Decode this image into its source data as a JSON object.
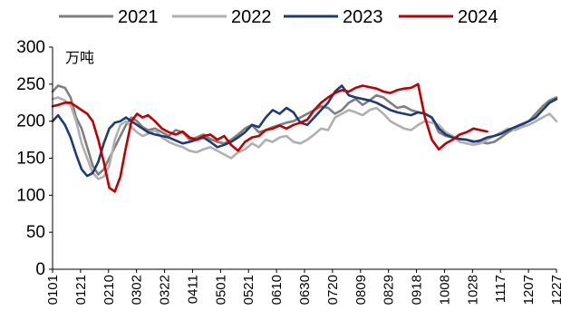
{
  "chart_data": {
    "type": "line",
    "unit_label": "万吨",
    "ylim": [
      0,
      300
    ],
    "y_ticks": [
      0,
      50,
      100,
      150,
      200,
      250,
      300
    ],
    "x_range": [
      1,
      365
    ],
    "x_tick_labels": [
      "0101",
      "0121",
      "0210",
      "0302",
      "0322",
      "0411",
      "0501",
      "0521",
      "0610",
      "0630",
      "0720",
      "0809",
      "0829",
      "0918",
      "1008",
      "1028",
      "1117",
      "1207",
      "1227"
    ],
    "grid": false,
    "legend_position": "top",
    "series": [
      {
        "name": "2021",
        "color": "#7f7f7f",
        "x": [
          1,
          5,
          10,
          14,
          18,
          22,
          26,
          30,
          34,
          38,
          42,
          46,
          50,
          54,
          58,
          62,
          66,
          70,
          75,
          80,
          85,
          90,
          95,
          100,
          105,
          110,
          115,
          120,
          125,
          130,
          135,
          140,
          145,
          150,
          155,
          160,
          165,
          170,
          175,
          180,
          185,
          190,
          195,
          200,
          205,
          210,
          215,
          220,
          225,
          230,
          235,
          240,
          245,
          250,
          255,
          260,
          265,
          270,
          275,
          280,
          285,
          290,
          295,
          300,
          305,
          310,
          315,
          320,
          325,
          330,
          335,
          340,
          345,
          350,
          355,
          360,
          365
        ],
        "values": [
          240,
          248,
          245,
          232,
          205,
          190,
          165,
          140,
          128,
          135,
          150,
          165,
          180,
          195,
          205,
          200,
          192,
          188,
          190,
          185,
          180,
          188,
          185,
          175,
          178,
          182,
          176,
          172,
          170,
          175,
          182,
          190,
          195,
          185,
          188,
          192,
          195,
          198,
          200,
          205,
          210,
          215,
          220,
          218,
          210,
          215,
          225,
          230,
          222,
          228,
          235,
          232,
          225,
          218,
          220,
          215,
          212,
          210,
          205,
          185,
          180,
          178,
          176,
          175,
          173,
          172,
          170,
          172,
          178,
          185,
          190,
          195,
          200,
          210,
          220,
          228,
          232
        ]
      },
      {
        "name": "2022",
        "color": "#b0b0b0",
        "x": [
          1,
          5,
          10,
          14,
          18,
          22,
          26,
          30,
          34,
          38,
          42,
          46,
          50,
          54,
          58,
          62,
          66,
          70,
          75,
          80,
          85,
          90,
          95,
          100,
          105,
          110,
          115,
          120,
          125,
          130,
          135,
          140,
          145,
          150,
          155,
          160,
          165,
          170,
          175,
          180,
          185,
          190,
          195,
          200,
          205,
          210,
          215,
          220,
          225,
          230,
          235,
          240,
          245,
          250,
          255,
          260,
          265,
          270,
          275,
          280,
          285,
          290,
          295,
          300,
          305,
          310,
          315,
          320,
          325,
          330,
          335,
          340,
          345,
          350,
          355,
          360,
          365
        ],
        "values": [
          230,
          232,
          228,
          222,
          200,
          170,
          150,
          130,
          122,
          125,
          140,
          175,
          195,
          200,
          192,
          185,
          180,
          183,
          188,
          178,
          172,
          168,
          165,
          160,
          158,
          162,
          165,
          160,
          155,
          150,
          158,
          162,
          170,
          165,
          175,
          172,
          178,
          180,
          172,
          170,
          175,
          182,
          190,
          188,
          205,
          210,
          215,
          212,
          208,
          215,
          218,
          210,
          200,
          195,
          190,
          188,
          195,
          200,
          198,
          195,
          185,
          180,
          172,
          170,
          168,
          170,
          175,
          180,
          185,
          190,
          188,
          192,
          195,
          200,
          205,
          210,
          200
        ]
      },
      {
        "name": "2023",
        "color": "#1f3b73",
        "x": [
          1,
          5,
          10,
          14,
          18,
          22,
          26,
          30,
          34,
          38,
          42,
          46,
          50,
          54,
          58,
          62,
          66,
          70,
          75,
          80,
          85,
          90,
          95,
          100,
          105,
          110,
          115,
          120,
          125,
          130,
          135,
          140,
          145,
          150,
          155,
          160,
          165,
          170,
          175,
          180,
          185,
          190,
          195,
          200,
          205,
          210,
          215,
          220,
          225,
          230,
          235,
          240,
          245,
          250,
          255,
          260,
          265,
          270,
          275,
          280,
          285,
          290,
          295,
          300,
          305,
          310,
          315,
          320,
          325,
          330,
          335,
          340,
          345,
          350,
          355,
          360,
          365
        ],
        "values": [
          200,
          208,
          195,
          178,
          155,
          135,
          126,
          130,
          145,
          170,
          190,
          198,
          200,
          205,
          200,
          195,
          190,
          185,
          182,
          180,
          178,
          174,
          170,
          172,
          175,
          178,
          172,
          165,
          168,
          172,
          178,
          185,
          195,
          192,
          205,
          215,
          210,
          218,
          212,
          198,
          195,
          205,
          215,
          225,
          240,
          248,
          235,
          232,
          230,
          228,
          225,
          220,
          215,
          212,
          210,
          208,
          212,
          210,
          205,
          190,
          182,
          178,
          176,
          175,
          172,
          174,
          178,
          180,
          183,
          188,
          192,
          196,
          200,
          205,
          215,
          225,
          230
        ]
      },
      {
        "name": "2024",
        "color": "#c00000",
        "x": [
          1,
          5,
          10,
          14,
          18,
          22,
          26,
          30,
          34,
          38,
          42,
          46,
          50,
          54,
          58,
          62,
          66,
          70,
          75,
          80,
          85,
          90,
          95,
          100,
          105,
          110,
          115,
          120,
          125,
          130,
          135,
          140,
          145,
          150,
          155,
          160,
          165,
          170,
          175,
          180,
          185,
          190,
          195,
          200,
          205,
          210,
          215,
          220,
          225,
          230,
          235,
          240,
          245,
          250,
          255,
          260,
          265,
          270,
          275,
          280,
          285,
          290,
          295,
          300,
          305,
          310,
          315
        ],
        "values": [
          220,
          222,
          225,
          225,
          220,
          215,
          210,
          200,
          175,
          145,
          110,
          105,
          125,
          165,
          200,
          210,
          205,
          208,
          200,
          190,
          185,
          182,
          186,
          178,
          175,
          180,
          182,
          175,
          180,
          168,
          160,
          172,
          178,
          180,
          188,
          190,
          194,
          190,
          195,
          198,
          202,
          215,
          225,
          232,
          238,
          242,
          240,
          245,
          248,
          246,
          244,
          240,
          238,
          242,
          244,
          245,
          250,
          205,
          175,
          162,
          170,
          175,
          182,
          185,
          190,
          188,
          186
        ]
      }
    ]
  }
}
